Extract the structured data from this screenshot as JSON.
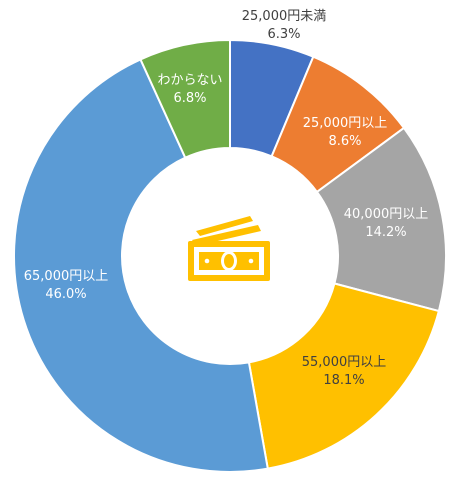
{
  "chart_data": {
    "type": "pie",
    "variant": "donut",
    "title": "",
    "center_icon": "money-bills-icon",
    "categories": [
      "25,000円未満",
      "25,000円以上",
      "40,000円以上",
      "55,000円以上",
      "65,000円以上",
      "わからない"
    ],
    "values": [
      6.3,
      8.6,
      14.2,
      18.1,
      46.0,
      6.8
    ],
    "value_labels": [
      "6.3%",
      "8.6%",
      "14.2%",
      "18.1%",
      "46.0%",
      "6.8%"
    ],
    "colors": [
      "#4472C4",
      "#ED7D31",
      "#A5A5A5",
      "#FFC000",
      "#5B9BD5",
      "#70AD47"
    ],
    "label_text_colors": [
      "#404040",
      "#ffffff",
      "#ffffff",
      "#404040",
      "#ffffff",
      "#ffffff"
    ],
    "icon_color": "#FFC000",
    "legend": "none"
  }
}
